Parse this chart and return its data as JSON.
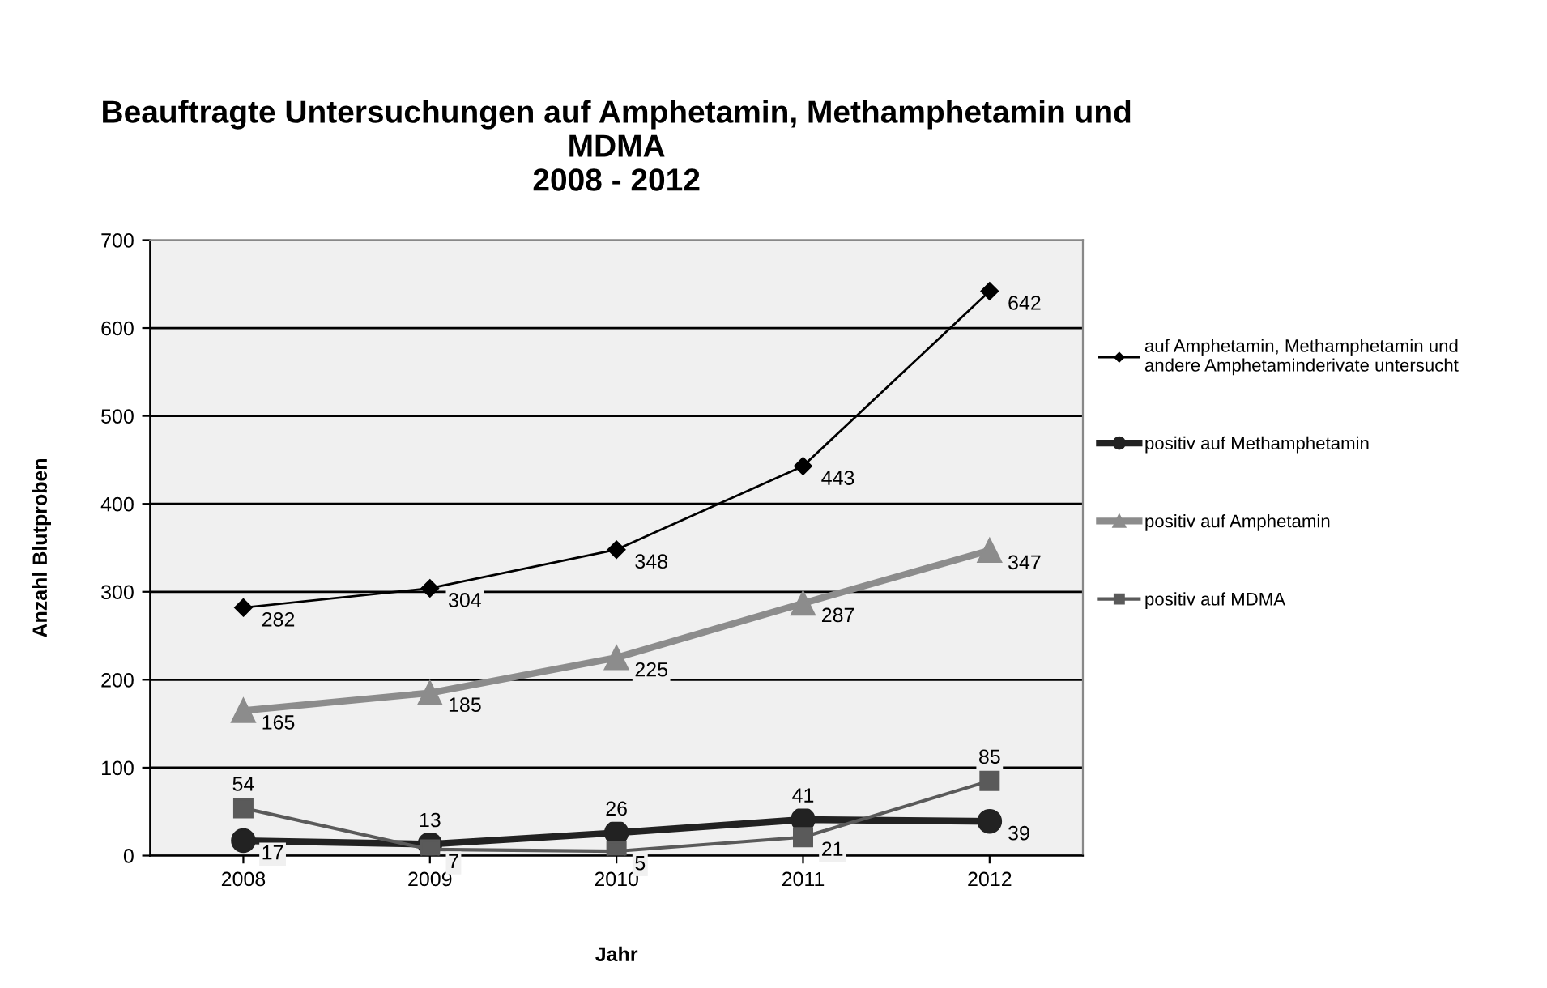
{
  "chart_data": {
    "type": "line",
    "title": "Beauftragte Untersuchungen auf Amphetamin, Methamphetamin und\nMDMA\n2008 - 2012",
    "xlabel": "Jahr",
    "ylabel": "Anzahl Blutproben",
    "categories": [
      "2008",
      "2009",
      "2010",
      "2011",
      "2012"
    ],
    "series": [
      {
        "name": "auf Amphetamin, Methamphetamin und\nandere Amphetaminderivate untersucht",
        "color": "#000000",
        "marker": "diamond",
        "values": [
          282,
          304,
          348,
          443,
          642
        ]
      },
      {
        "name": "positiv auf Methamphetamin",
        "color": "#222222",
        "marker": "circle",
        "values": [
          17,
          13,
          26,
          41,
          39
        ]
      },
      {
        "name": "positiv auf Amphetamin",
        "color": "#8c8c8c",
        "marker": "triangle",
        "values": [
          165,
          185,
          225,
          287,
          347
        ]
      },
      {
        "name": "positiv auf MDMA",
        "color": "#5a5a5a",
        "marker": "square",
        "values": [
          54,
          7,
          5,
          21,
          85
        ]
      }
    ],
    "ylim": [
      0,
      700
    ],
    "yticks": [
      0,
      100,
      200,
      300,
      400,
      500,
      600,
      700
    ],
    "grid": "y",
    "legend": "right",
    "data_labels": true
  }
}
